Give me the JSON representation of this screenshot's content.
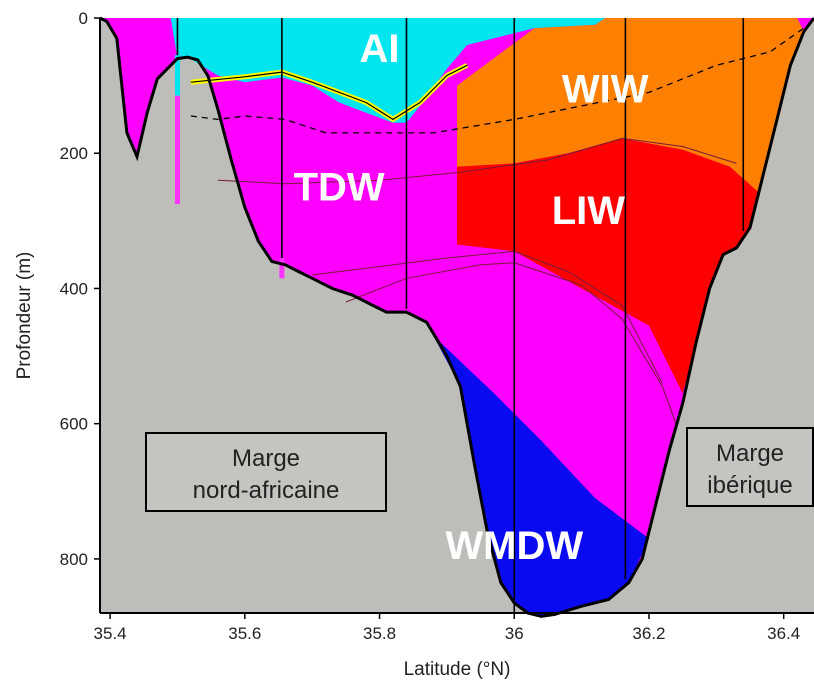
{
  "chart_data": {
    "type": "section",
    "xlabel": "Latitude (°N)",
    "ylabel": "Profondeur (m)",
    "xlim": [
      35.385,
      36.445
    ],
    "ylim": [
      0,
      880
    ],
    "x_ticks": [
      "35.4",
      "35.6",
      "35.8",
      "36",
      "36.2",
      "36.4"
    ],
    "y_ticks": [
      "0",
      "200",
      "400",
      "600",
      "800"
    ],
    "water_masses": [
      {
        "name": "AI",
        "color": "#00e5ee"
      },
      {
        "name": "WIW",
        "color": "#ff7f00"
      },
      {
        "name": "TDW",
        "color": "#ff00ff"
      },
      {
        "name": "LIW",
        "color": "#ff0000"
      },
      {
        "name": "WMDW",
        "color": "#0a0af0"
      }
    ],
    "margins": [
      {
        "line1": "Marge",
        "line2": "nord-africaine"
      },
      {
        "line1": "Marge",
        "line2": "ibérique"
      }
    ],
    "stations_lat": [
      35.5,
      35.655,
      35.84,
      36.0,
      36.165,
      36.34
    ],
    "stations_bottom_depth": [
      60,
      360,
      430,
      880,
      830,
      315
    ],
    "bottom_profile": [
      [
        35.385,
        0
      ],
      [
        35.395,
        5
      ],
      [
        35.41,
        30
      ],
      [
        35.425,
        170
      ],
      [
        35.44,
        205
      ],
      [
        35.455,
        140
      ],
      [
        35.47,
        90
      ],
      [
        35.485,
        75
      ],
      [
        35.5,
        60
      ],
      [
        35.515,
        58
      ],
      [
        35.53,
        62
      ],
      [
        35.545,
        85
      ],
      [
        35.56,
        135
      ],
      [
        35.58,
        210
      ],
      [
        35.6,
        280
      ],
      [
        35.62,
        330
      ],
      [
        35.64,
        360
      ],
      [
        35.66,
        365
      ],
      [
        35.68,
        375
      ],
      [
        35.7,
        385
      ],
      [
        35.73,
        400
      ],
      [
        35.76,
        410
      ],
      [
        35.79,
        425
      ],
      [
        35.81,
        435
      ],
      [
        35.84,
        435
      ],
      [
        35.87,
        450
      ],
      [
        35.9,
        500
      ],
      [
        35.92,
        545
      ],
      [
        35.94,
        655
      ],
      [
        35.96,
        760
      ],
      [
        35.98,
        835
      ],
      [
        36.0,
        865
      ],
      [
        36.02,
        880
      ],
      [
        36.04,
        885
      ],
      [
        36.06,
        882
      ],
      [
        36.1,
        870
      ],
      [
        36.14,
        860
      ],
      [
        36.17,
        835
      ],
      [
        36.19,
        800
      ],
      [
        36.21,
        720
      ],
      [
        36.23,
        640
      ],
      [
        36.25,
        570
      ],
      [
        36.27,
        480
      ],
      [
        36.29,
        400
      ],
      [
        36.31,
        350
      ],
      [
        36.33,
        340
      ],
      [
        36.35,
        310
      ],
      [
        36.37,
        230
      ],
      [
        36.39,
        150
      ],
      [
        36.41,
        70
      ],
      [
        36.43,
        20
      ],
      [
        36.445,
        0
      ]
    ],
    "layers": {
      "AI": [
        [
          35.49,
          0
        ],
        [
          36.135,
          0
        ],
        [
          36.12,
          10
        ],
        [
          36.03,
          15
        ],
        [
          35.93,
          40
        ],
        [
          35.9,
          75
        ],
        [
          35.86,
          130
        ],
        [
          35.84,
          155
        ],
        [
          35.82,
          155
        ],
        [
          35.78,
          140
        ],
        [
          35.74,
          125
        ],
        [
          35.7,
          100
        ],
        [
          35.655,
          88
        ],
        [
          35.6,
          95
        ],
        [
          35.56,
          85
        ],
        [
          35.515,
          58
        ],
        [
          35.5,
          60
        ]
      ],
      "WIW": [
        [
          35.91,
          0
        ],
        [
          36.42,
          0
        ],
        [
          36.43,
          20
        ],
        [
          36.41,
          70
        ],
        [
          36.39,
          150
        ],
        [
          36.365,
          260
        ],
        [
          36.32,
          220
        ],
        [
          36.25,
          195
        ],
        [
          36.16,
          178
        ],
        [
          36.08,
          200
        ],
        [
          36.0,
          215
        ],
        [
          35.915,
          220
        ],
        [
          35.915,
          100
        ],
        [
          36.03,
          15
        ],
        [
          36.12,
          10
        ],
        [
          36.135,
          0
        ]
      ],
      "LIW": [
        [
          35.915,
          220
        ],
        [
          36.0,
          215
        ],
        [
          36.08,
          200
        ],
        [
          36.16,
          178
        ],
        [
          36.25,
          195
        ],
        [
          36.32,
          220
        ],
        [
          36.365,
          260
        ],
        [
          36.35,
          310
        ],
        [
          36.33,
          340
        ],
        [
          36.31,
          350
        ],
        [
          36.29,
          400
        ],
        [
          36.27,
          480
        ],
        [
          36.25,
          555
        ],
        [
          36.2,
          455
        ],
        [
          36.1,
          400
        ],
        [
          36.0,
          345
        ],
        [
          35.915,
          335
        ]
      ],
      "WMDW": [
        [
          35.88,
          470
        ],
        [
          35.97,
          555
        ],
        [
          36.04,
          625
        ],
        [
          36.12,
          710
        ],
        [
          36.2,
          770
        ],
        [
          36.17,
          835
        ],
        [
          36.14,
          860
        ],
        [
          36.1,
          870
        ],
        [
          36.06,
          882
        ],
        [
          36.04,
          885
        ],
        [
          36.02,
          880
        ],
        [
          36.0,
          865
        ],
        [
          35.98,
          835
        ],
        [
          35.96,
          760
        ],
        [
          35.94,
          655
        ],
        [
          35.92,
          545
        ]
      ]
    },
    "interfaces": {
      "yellow": [
        [
          35.52,
          95
        ],
        [
          35.6,
          87
        ],
        [
          35.655,
          80
        ],
        [
          35.7,
          95
        ],
        [
          35.78,
          125
        ],
        [
          35.82,
          150
        ],
        [
          35.86,
          125
        ],
        [
          35.9,
          85
        ],
        [
          35.93,
          70
        ]
      ],
      "dashed": [
        [
          35.52,
          145
        ],
        [
          35.56,
          150
        ],
        [
          35.6,
          145
        ],
        [
          35.66,
          150
        ],
        [
          35.72,
          170
        ],
        [
          35.8,
          170
        ],
        [
          35.88,
          170
        ],
        [
          36.0,
          150
        ],
        [
          36.1,
          130
        ],
        [
          36.2,
          110
        ],
        [
          36.3,
          70
        ],
        [
          36.38,
          50
        ],
        [
          36.43,
          15
        ]
      ],
      "thin_a": [
        [
          35.56,
          240
        ],
        [
          35.66,
          245
        ],
        [
          35.8,
          240
        ],
        [
          35.92,
          228
        ],
        [
          36.05,
          210
        ],
        [
          36.16,
          178
        ],
        [
          36.25,
          190
        ],
        [
          36.33,
          215
        ]
      ],
      "thin_b": [
        [
          35.7,
          380
        ],
        [
          35.78,
          370
        ],
        [
          35.9,
          355
        ],
        [
          36.0,
          345
        ],
        [
          36.08,
          375
        ],
        [
          36.16,
          425
        ],
        [
          36.22,
          540
        ]
      ],
      "thin_c": [
        [
          35.75,
          420
        ],
        [
          35.84,
          385
        ],
        [
          35.95,
          365
        ],
        [
          36.0,
          362
        ],
        [
          36.1,
          395
        ],
        [
          36.16,
          445
        ],
        [
          36.22,
          545
        ],
        [
          36.24,
          600
        ]
      ]
    }
  }
}
